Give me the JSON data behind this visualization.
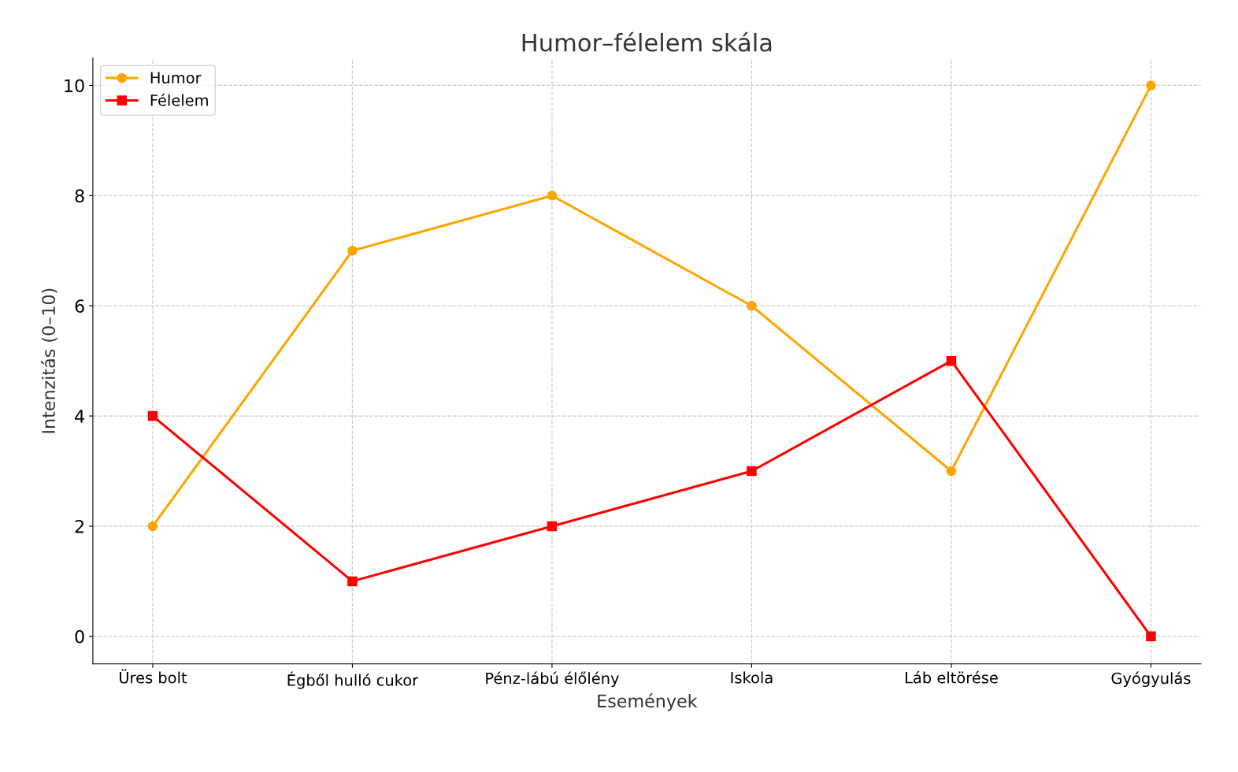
{
  "chart_data": {
    "type": "line",
    "title": "Humor–félelem skála",
    "xlabel": "Események",
    "ylabel": "Intenzitás (0–10)",
    "categories": [
      "Üres bolt",
      "Égből hulló cukor",
      "Pénz-lábú élőlény",
      "Iskola",
      "Láb eltörése",
      "Gyógyulás"
    ],
    "series": [
      {
        "name": "Humor",
        "color": "#ffa500",
        "marker": "circle",
        "values": [
          2,
          7,
          8,
          6,
          3,
          10
        ]
      },
      {
        "name": "Félelem",
        "color": "#ff0000",
        "marker": "square",
        "values": [
          4,
          1,
          2,
          3,
          5,
          0
        ]
      }
    ],
    "ylim": [
      -0.5,
      10.5
    ],
    "yticks": [
      0,
      2,
      4,
      6,
      8,
      10
    ],
    "grid": true,
    "legend": "top left",
    "line_style": "solid"
  }
}
